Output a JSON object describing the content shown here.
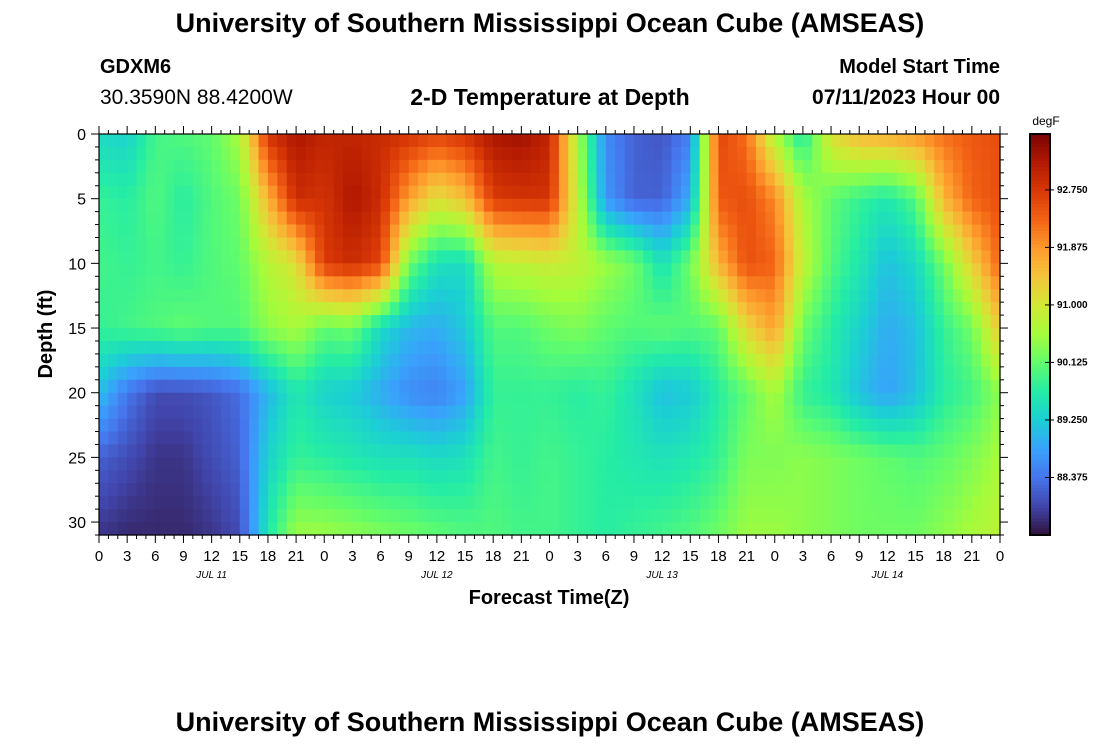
{
  "title": "University of Southern Mississippi Ocean Cube (AMSEAS)",
  "title_bottom": "University of Southern Mississippi Ocean Cube (AMSEAS)",
  "station": {
    "id": "GDXM6",
    "coords": "30.3590N  88.4200W"
  },
  "subtitle": "2-D Temperature at Depth",
  "model_start": {
    "label": "Model Start Time",
    "value": "07/11/2023 Hour 00"
  },
  "chart_data": {
    "type": "heatmap",
    "xlabel": "Forecast Time(Z)",
    "ylabel": "Depth (ft)",
    "x_hours": [
      0,
      96
    ],
    "x_tick_labels": [
      "0",
      "3",
      "6",
      "9",
      "12",
      "15",
      "18",
      "21",
      "0",
      "3",
      "6",
      "9",
      "12",
      "15",
      "18",
      "21",
      "0",
      "3",
      "6",
      "9",
      "12",
      "15",
      "18",
      "21",
      "0",
      "3",
      "6",
      "9",
      "12",
      "15",
      "18",
      "21",
      "0"
    ],
    "day_labels": [
      {
        "hour": 12,
        "label": "JUL 11"
      },
      {
        "hour": 36,
        "label": "JUL 12"
      },
      {
        "hour": 60,
        "label": "JUL 13"
      },
      {
        "hour": 84,
        "label": "JUL 14"
      }
    ],
    "ylim": [
      0,
      31
    ],
    "y_ticks": [
      0,
      5,
      10,
      15,
      20,
      25,
      30
    ],
    "colorbar": {
      "unit": "degF",
      "range": [
        87.5,
        93.6
      ],
      "tick_values": [
        88.375,
        89.25,
        90.125,
        91.0,
        91.875,
        92.75
      ],
      "tick_labels": [
        "88.375",
        "89.250",
        "90.125",
        "91.000",
        "91.875",
        "92.750"
      ]
    },
    "color_scale": [
      "#30123b",
      "#4145ab",
      "#4675ed",
      "#39a2fc",
      "#1bcfd4",
      "#24eca6",
      "#61fc6c",
      "#a4fc3b",
      "#d1e834",
      "#f3c63a",
      "#fe9b2d",
      "#f36315",
      "#d93806",
      "#b11901",
      "#7a0402"
    ],
    "depths_ft": [
      0,
      5,
      10,
      15,
      20,
      25,
      31
    ],
    "times_h": [
      0,
      3,
      6,
      9,
      12,
      15,
      18,
      21,
      24,
      27,
      30,
      33,
      36,
      39,
      42,
      45,
      48,
      51,
      54,
      57,
      60,
      63,
      66,
      69,
      72,
      75,
      78,
      81,
      84,
      87,
      90,
      93,
      96
    ],
    "values_degF": [
      [
        89.4,
        89.3,
        89.9,
        90.0,
        90.1,
        90.6,
        92.8,
        93.2,
        93.0,
        93.0,
        92.9,
        92.8,
        92.6,
        92.8,
        93.2,
        93.3,
        93.0,
        90.6,
        88.6,
        88.2,
        88.1,
        88.5,
        92.6,
        92.2,
        90.6,
        89.6,
        91.1,
        91.6,
        91.7,
        91.9,
        92.2,
        92.4,
        92.5
      ],
      [
        89.8,
        89.7,
        90.0,
        89.7,
        90.0,
        90.2,
        91.6,
        92.9,
        92.8,
        93.2,
        92.9,
        91.8,
        91.1,
        91.5,
        92.7,
        92.8,
        92.8,
        90.8,
        88.7,
        88.2,
        88.2,
        88.9,
        92.4,
        92.5,
        92.0,
        90.6,
        90.1,
        89.8,
        89.6,
        90.0,
        91.6,
        92.3,
        92.5
      ],
      [
        89.9,
        89.8,
        89.9,
        89.8,
        90.0,
        90.1,
        90.7,
        91.1,
        92.7,
        92.9,
        92.6,
        90.2,
        89.5,
        89.4,
        90.7,
        90.8,
        90.9,
        90.8,
        90.5,
        90.2,
        89.5,
        90.2,
        91.6,
        92.5,
        92.3,
        90.8,
        90.0,
        89.6,
        89.1,
        89.4,
        90.2,
        91.3,
        92.3
      ],
      [
        89.8,
        89.9,
        90.0,
        90.1,
        90.0,
        90.0,
        90.4,
        90.6,
        90.1,
        90.2,
        89.4,
        89.0,
        88.9,
        89.2,
        90.0,
        90.0,
        90.2,
        90.3,
        90.1,
        90.0,
        90.1,
        90.0,
        90.1,
        91.2,
        91.8,
        90.2,
        89.7,
        89.3,
        88.9,
        89.1,
        89.8,
        90.2,
        91.4
      ],
      [
        89.1,
        88.4,
        88.0,
        88.0,
        88.1,
        88.3,
        89.0,
        89.6,
        89.3,
        89.2,
        88.9,
        88.6,
        88.5,
        88.8,
        89.8,
        89.8,
        89.8,
        89.7,
        89.8,
        89.5,
        89.1,
        89.2,
        89.7,
        90.1,
        90.6,
        89.8,
        89.6,
        89.1,
        88.8,
        89.1,
        89.7,
        89.9,
        90.4
      ],
      [
        88.2,
        88.0,
        87.8,
        87.8,
        88.0,
        88.2,
        89.3,
        89.8,
        89.7,
        89.6,
        89.5,
        89.5,
        89.4,
        89.5,
        89.9,
        89.8,
        89.9,
        89.8,
        89.7,
        89.6,
        89.5,
        89.6,
        89.8,
        90.3,
        90.3,
        90.4,
        90.3,
        90.2,
        90.1,
        90.0,
        90.1,
        90.3,
        90.6
      ],
      [
        87.8,
        87.7,
        87.7,
        87.7,
        87.8,
        88.0,
        89.6,
        90.5,
        90.5,
        90.4,
        90.3,
        90.2,
        90.1,
        90.0,
        90.0,
        89.9,
        89.9,
        89.8,
        89.7,
        89.8,
        89.9,
        90.0,
        90.2,
        90.5,
        90.5,
        90.4,
        90.3,
        90.2,
        90.2,
        90.2,
        90.4,
        90.6,
        90.8
      ]
    ]
  }
}
